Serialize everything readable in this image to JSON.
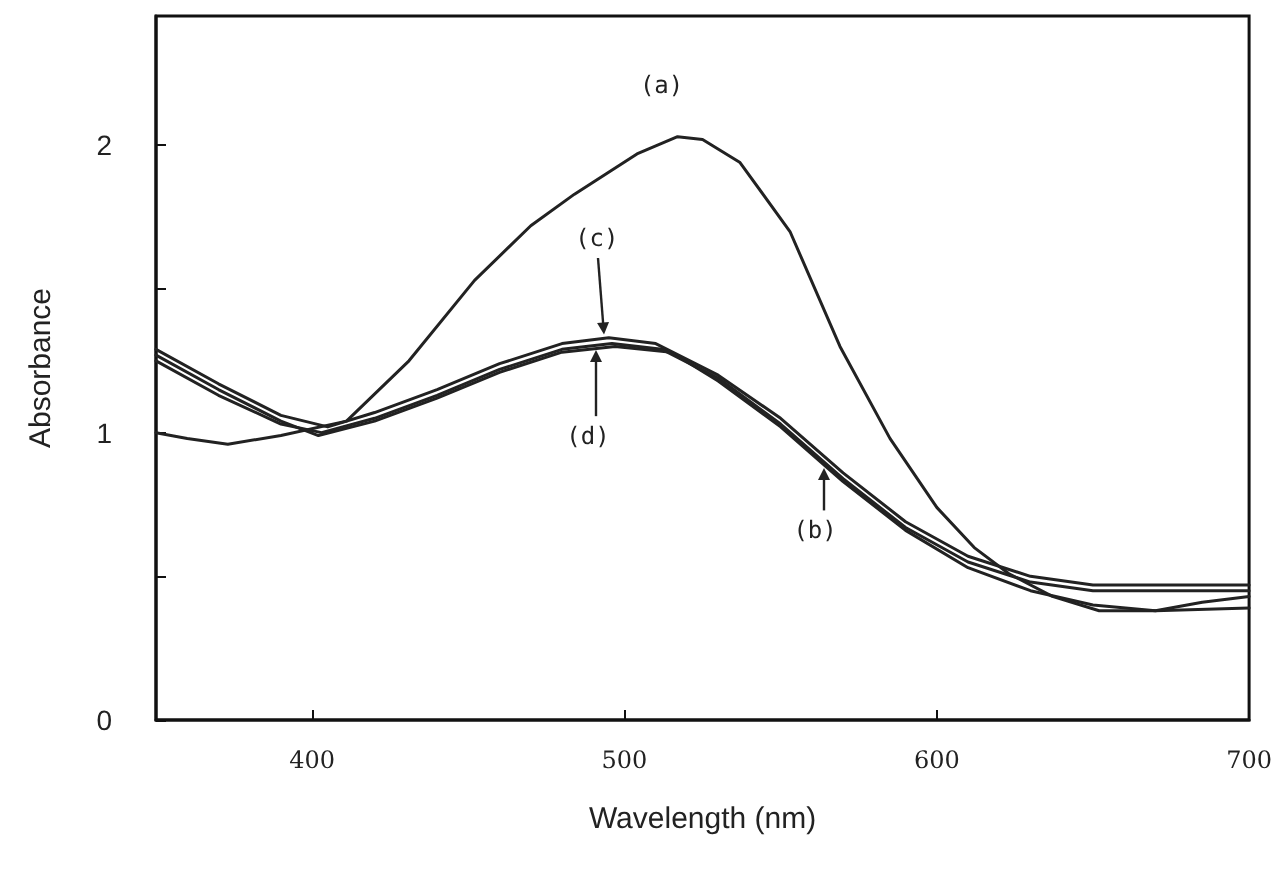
{
  "chart_data": {
    "type": "line",
    "xlabel": "Wavelength (nm)",
    "ylabel": "Absorbance",
    "xlim": [
      350,
      700
    ],
    "xticks": [
      400,
      500,
      600,
      700
    ],
    "ylim": [
      0,
      2.45
    ],
    "yticks": [
      0,
      {
        "value": 0.5,
        "label": null
      },
      1,
      {
        "value": 1.5,
        "label": null
      },
      2
    ],
    "grid": false,
    "marker": "none",
    "line_style": "solid",
    "series": [
      {
        "name": "(a)",
        "color": "#222222",
        "x": [
          350,
          360,
          373,
          390,
          411,
          431,
          452,
          470,
          484,
          504,
          517,
          525,
          537,
          553,
          569,
          585,
          600,
          612,
          623,
          637,
          652,
          670,
          685,
          700
        ],
        "values": [
          1.0,
          0.98,
          0.96,
          0.99,
          1.04,
          1.25,
          1.53,
          1.72,
          1.83,
          1.97,
          2.03,
          2.02,
          1.94,
          1.7,
          1.3,
          0.98,
          0.74,
          0.6,
          0.51,
          0.43,
          0.38,
          0.38,
          0.41,
          0.43
        ]
      },
      {
        "name": "(b)",
        "color": "#222222",
        "x": [
          350,
          370,
          390,
          402,
          420,
          440,
          460,
          480,
          497,
          515,
          530,
          550,
          570,
          590,
          610,
          630,
          650,
          670,
          700
        ],
        "values": [
          1.27,
          1.15,
          1.04,
          0.99,
          1.04,
          1.12,
          1.21,
          1.28,
          1.3,
          1.28,
          1.18,
          1.02,
          0.83,
          0.66,
          0.53,
          0.45,
          0.4,
          0.38,
          0.39
        ]
      },
      {
        "name": "(c)",
        "color": "#222222",
        "x": [
          350,
          370,
          390,
          405,
          420,
          440,
          460,
          480,
          495,
          510,
          530,
          550,
          570,
          590,
          610,
          630,
          650,
          670,
          700
        ],
        "values": [
          1.29,
          1.17,
          1.06,
          1.02,
          1.07,
          1.15,
          1.24,
          1.31,
          1.33,
          1.31,
          1.2,
          1.05,
          0.86,
          0.69,
          0.57,
          0.5,
          0.47,
          0.47,
          0.47
        ]
      },
      {
        "name": "(d)",
        "color": "#222222",
        "x": [
          350,
          370,
          390,
          403,
          420,
          440,
          460,
          480,
          496,
          512,
          530,
          550,
          570,
          590,
          610,
          630,
          650,
          670,
          700
        ],
        "values": [
          1.25,
          1.13,
          1.03,
          1.0,
          1.05,
          1.13,
          1.22,
          1.29,
          1.31,
          1.29,
          1.19,
          1.03,
          0.84,
          0.67,
          0.55,
          0.48,
          0.45,
          0.45,
          0.45
        ]
      }
    ]
  }
}
